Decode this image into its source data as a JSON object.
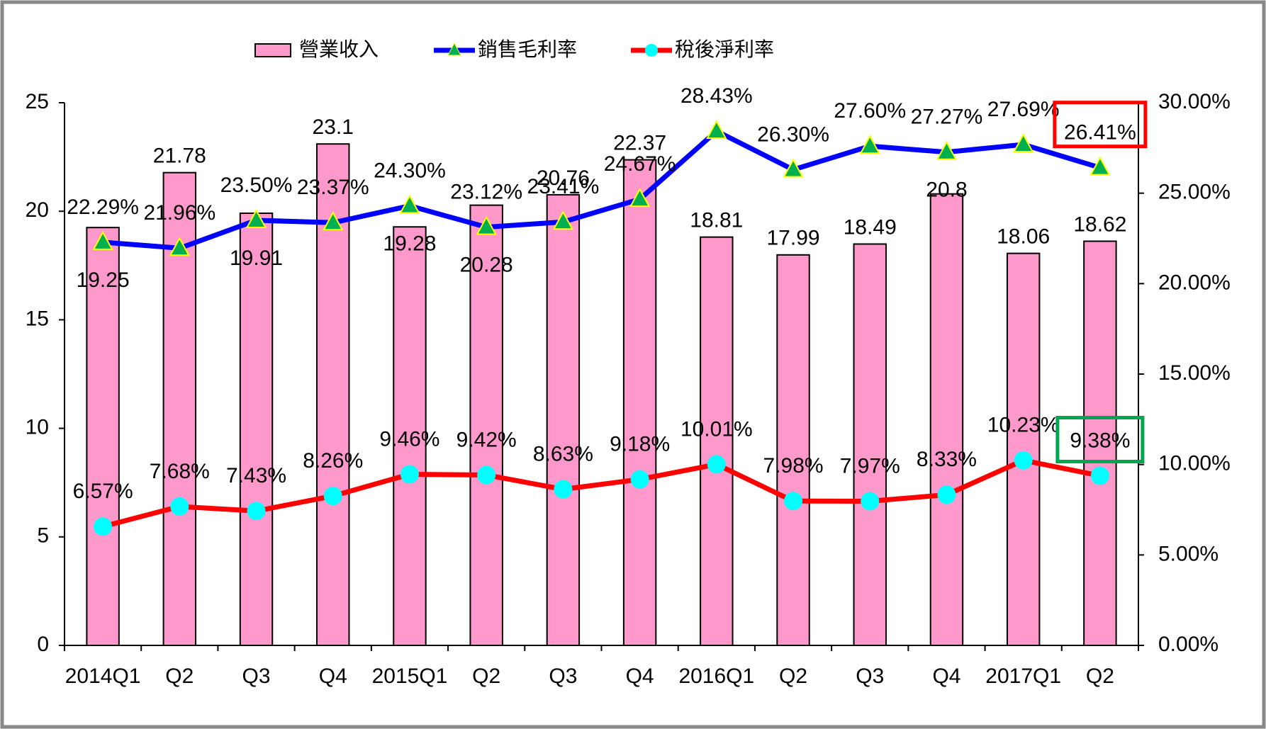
{
  "chart_data": {
    "type": "combo",
    "categories": [
      "2014Q1",
      "Q2",
      "Q3",
      "Q4",
      "2015Q1",
      "Q2",
      "Q3",
      "Q4",
      "2016Q1",
      "Q2",
      "Q3",
      "Q4",
      "2017Q1",
      "Q2"
    ],
    "series": [
      {
        "name": "營業收入",
        "type": "bar",
        "color": "#ff99cc",
        "values": [
          19.25,
          21.78,
          19.91,
          23.1,
          19.28,
          20.28,
          20.76,
          22.37,
          18.81,
          17.99,
          18.49,
          20.8,
          18.06,
          18.62
        ]
      },
      {
        "name": "銷售毛利率",
        "type": "line",
        "axis": "y2",
        "color": "#0000ff",
        "marker": "triangle",
        "marker_color": "#00b050",
        "values": [
          22.29,
          21.96,
          23.5,
          23.37,
          24.3,
          23.12,
          23.41,
          24.67,
          28.43,
          26.3,
          27.6,
          27.27,
          27.69,
          26.41
        ],
        "value_labels": [
          "22.29%",
          "21.96%",
          "23.50%",
          "23.37%",
          "24.30%",
          "23.12%",
          "23.41%",
          "24.67%",
          "28.43%",
          "26.30%",
          "27.60%",
          "27.27%",
          "27.69%",
          "26.41%"
        ]
      },
      {
        "name": "稅後淨利率",
        "type": "line",
        "axis": "y2",
        "color": "#ff0000",
        "marker": "circle",
        "marker_color": "#00ffff",
        "values": [
          6.57,
          7.68,
          7.43,
          8.26,
          9.46,
          9.42,
          8.63,
          9.18,
          10.01,
          7.98,
          7.97,
          8.33,
          10.23,
          9.38
        ],
        "value_labels": [
          "6.57%",
          "7.68%",
          "7.43%",
          "8.26%",
          "9.46%",
          "9.42%",
          "8.63%",
          "9.18%",
          "10.01%",
          "7.98%",
          "7.97%",
          "8.33%",
          "10.23%",
          "9.38%"
        ]
      }
    ],
    "ylim": [
      0,
      25
    ],
    "yticks": [
      0,
      5,
      10,
      15,
      20,
      25
    ],
    "y2lim": [
      0,
      30
    ],
    "y2ticks": [
      {
        "value": 0,
        "label": "0.00%"
      },
      {
        "value": 5,
        "label": "5.00%"
      },
      {
        "value": 10,
        "label": "10.00%"
      },
      {
        "value": 15,
        "label": "15.00%"
      },
      {
        "value": 20,
        "label": "20.00%"
      },
      {
        "value": 25,
        "label": "25.00%"
      },
      {
        "value": 30,
        "label": "30.00%"
      }
    ],
    "legend": "top",
    "grid": false
  }
}
